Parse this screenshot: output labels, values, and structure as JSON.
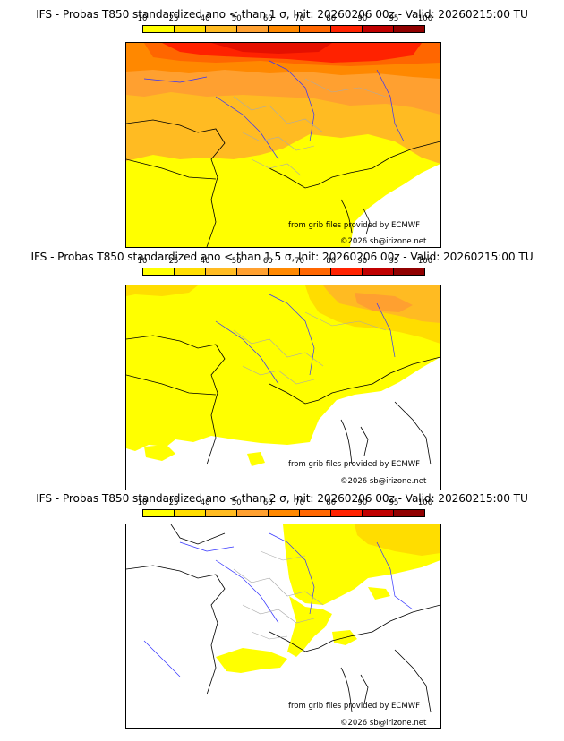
{
  "colorbar": {
    "ticks": [
      "10",
      "25",
      "40",
      "50",
      "60",
      "70",
      "80",
      "90",
      "95",
      "100"
    ],
    "colors": [
      "#ffff00",
      "#ffdd00",
      "#ffbb22",
      "#ffa030",
      "#ff8800",
      "#ff6600",
      "#ff2200",
      "#c00000",
      "#900000",
      "#500000"
    ]
  },
  "panels": [
    {
      "title": "IFS - Probas T850  standardized ano < than 1 σ, Init: 20260206 00z - Valid: 20260215:00 TU",
      "credit_source": "from grib files provided by ECMWF",
      "credit_copyright": "©2026 sb@irizone.net"
    },
    {
      "title": "IFS - Probas T850  standardized ano < than 1.5 σ, Init: 20260206 00z - Valid: 20260215:00 TU",
      "credit_source": "from grib files provided by ECMWF",
      "credit_copyright": "©2026 sb@irizone.net"
    },
    {
      "title": "IFS - Probas T850  standardized ano < than 2 σ, Init: 20260206 00z - Valid: 20260215:00 TU",
      "credit_source": "from grib files provided by ECMWF",
      "credit_copyright": "©2026 sb@irizone.net"
    }
  ]
}
